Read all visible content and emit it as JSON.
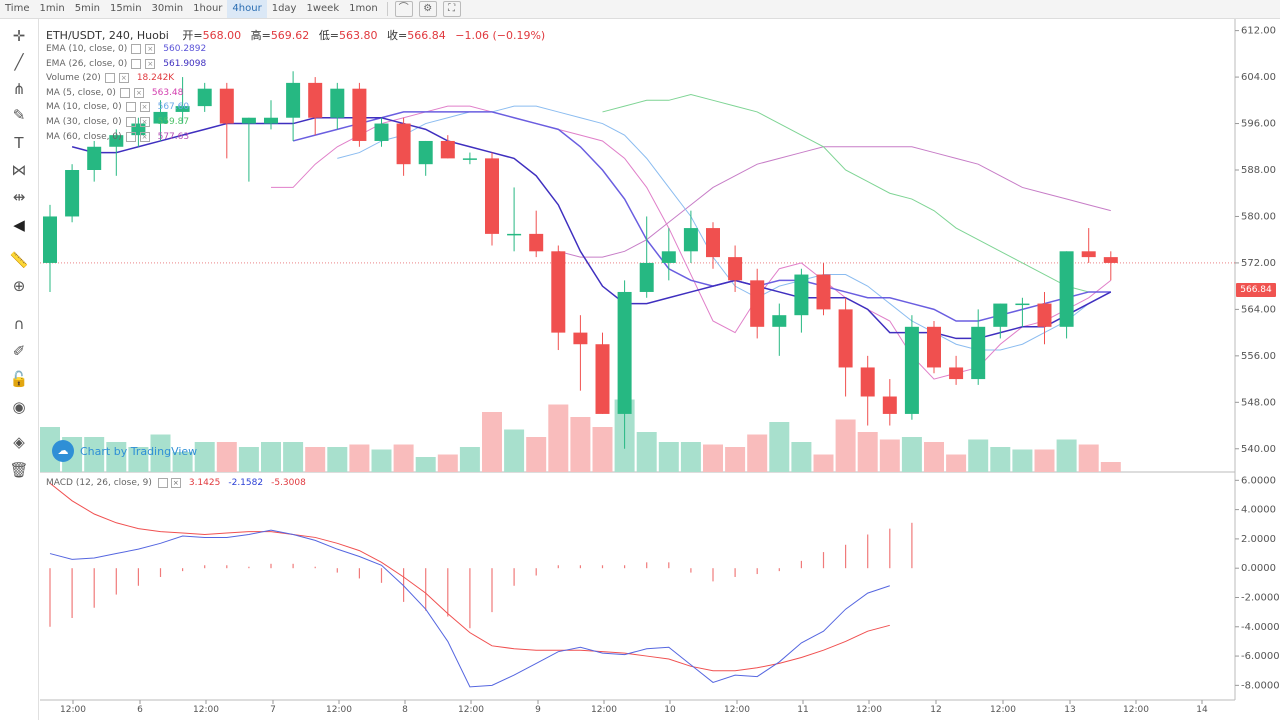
{
  "toolbar": {
    "timeframes": [
      {
        "label": "Time",
        "active": false
      },
      {
        "label": "1min",
        "active": false
      },
      {
        "label": "5min",
        "active": false
      },
      {
        "label": "15min",
        "active": false
      },
      {
        "label": "30min",
        "active": false
      },
      {
        "label": "1hour",
        "active": false
      },
      {
        "label": "4hour",
        "active": true
      },
      {
        "label": "1day",
        "active": false
      },
      {
        "label": "1week",
        "active": false
      },
      {
        "label": "1mon",
        "active": false
      }
    ],
    "icons": [
      "line-chart-icon",
      "settings-icon",
      "fullscreen-icon"
    ]
  },
  "sidebar": {
    "tools": [
      "crosshair-icon",
      "trend-line-icon",
      "pitchfork-icon",
      "brush-icon",
      "text-icon",
      "pattern-icon",
      "prediction-icon",
      "back-arrow-icon",
      "ruler-icon",
      "zoom-in-icon",
      "magnet-icon",
      "lock-drawing-icon",
      "unlock-icon",
      "eye-icon",
      "layers-icon",
      "trash-icon"
    ]
  },
  "header": {
    "symbol": "ETH/USDT, 240, Huobi",
    "open_label": "开=",
    "open": "568.00",
    "high_label": "高=",
    "high": "569.62",
    "low_label": "低=",
    "low": "563.80",
    "close_label": "收=",
    "close": "566.84",
    "change": "−1.06 (−0.19%)"
  },
  "indicators": [
    {
      "label": "EMA (10, close, 0)",
      "value": "560.2892",
      "color": "#5b54d8"
    },
    {
      "label": "EMA (26, close, 0)",
      "value": "561.9098",
      "color": "#3f2fbf"
    },
    {
      "label": "Volume (20)",
      "value": "18.242K",
      "color": "#e0393e"
    },
    {
      "label": "MA (5, close, 0)",
      "value": "563.48",
      "color": "#d33fb0"
    },
    {
      "label": "MA (10, close, 0)",
      "value": "567.60",
      "color": "#6aa7e8"
    },
    {
      "label": "MA (30, close, 0)",
      "value": "559.87",
      "color": "#4fc26a"
    },
    {
      "label": "MA (60, close, 0)",
      "value": "577.63",
      "color": "#b44fb4"
    }
  ],
  "macd": {
    "label": "MACD (12, 26, close, 9)",
    "v1": "3.1425",
    "v2": "-2.1582",
    "v3": "-5.3008"
  },
  "watermark": "Chart by TradingView",
  "last_price": "566.84",
  "price_axis": [
    "612.00",
    "604.00",
    "596.00",
    "588.00",
    "580.00",
    "572.00",
    "564.00",
    "556.00",
    "548.00",
    "540.00"
  ],
  "macd_axis": [
    "6.0000",
    "4.0000",
    "2.0000",
    "0.0000",
    "-2.0000",
    "-4.0000",
    "-6.0000",
    "-8.0000"
  ],
  "time_axis": [
    "12:00",
    "6",
    "12:00",
    "7",
    "12:00",
    "8",
    "12:00",
    "9",
    "12:00",
    "10",
    "12:00",
    "11",
    "12:00",
    "12",
    "12:00",
    "13",
    "12:00",
    "14"
  ],
  "chart_data": {
    "type": "candlestick",
    "symbol": "ETH/USDT",
    "candles": [
      {
        "o": 572,
        "h": 582,
        "l": 567,
        "c": 580
      },
      {
        "o": 580,
        "h": 589,
        "l": 579,
        "c": 588
      },
      {
        "o": 588,
        "h": 593,
        "l": 586,
        "c": 592
      },
      {
        "o": 592,
        "h": 595,
        "l": 587,
        "c": 594
      },
      {
        "o": 594,
        "h": 597,
        "l": 592,
        "c": 596
      },
      {
        "o": 596,
        "h": 600,
        "l": 593,
        "c": 598
      },
      {
        "o": 598,
        "h": 604,
        "l": 596,
        "c": 599
      },
      {
        "o": 599,
        "h": 603,
        "l": 598,
        "c": 602
      },
      {
        "o": 602,
        "h": 603,
        "l": 590,
        "c": 596
      },
      {
        "o": 596,
        "h": 597,
        "l": 586,
        "c": 597
      },
      {
        "o": 596,
        "h": 600,
        "l": 595,
        "c": 597
      },
      {
        "o": 597,
        "h": 605,
        "l": 593,
        "c": 603
      },
      {
        "o": 603,
        "h": 604,
        "l": 594,
        "c": 597
      },
      {
        "o": 597,
        "h": 603,
        "l": 595,
        "c": 602
      },
      {
        "o": 602,
        "h": 603,
        "l": 592,
        "c": 593
      },
      {
        "o": 593,
        "h": 597,
        "l": 592,
        "c": 596
      },
      {
        "o": 596,
        "h": 597,
        "l": 587,
        "c": 589
      },
      {
        "o": 589,
        "h": 593,
        "l": 587,
        "c": 593
      },
      {
        "o": 593,
        "h": 594,
        "l": 590,
        "c": 590
      },
      {
        "o": 590,
        "h": 591,
        "l": 589,
        "c": 590
      },
      {
        "o": 590,
        "h": 591,
        "l": 575,
        "c": 577
      },
      {
        "o": 577,
        "h": 585,
        "l": 574,
        "c": 577
      },
      {
        "o": 577,
        "h": 581,
        "l": 573,
        "c": 574
      },
      {
        "o": 574,
        "h": 575,
        "l": 557,
        "c": 560
      },
      {
        "o": 560,
        "h": 563,
        "l": 550,
        "c": 558
      },
      {
        "o": 558,
        "h": 560,
        "l": 546,
        "c": 546
      },
      {
        "o": 546,
        "h": 569,
        "l": 540,
        "c": 567
      },
      {
        "o": 567,
        "h": 580,
        "l": 566,
        "c": 572
      },
      {
        "o": 572,
        "h": 578,
        "l": 569,
        "c": 574
      },
      {
        "o": 574,
        "h": 581,
        "l": 572,
        "c": 578
      },
      {
        "o": 578,
        "h": 579,
        "l": 571,
        "c": 573
      },
      {
        "o": 573,
        "h": 575,
        "l": 567,
        "c": 569
      },
      {
        "o": 569,
        "h": 571,
        "l": 559,
        "c": 561
      },
      {
        "o": 561,
        "h": 565,
        "l": 556,
        "c": 563
      },
      {
        "o": 563,
        "h": 571,
        "l": 560,
        "c": 570
      },
      {
        "o": 570,
        "h": 572,
        "l": 563,
        "c": 564
      },
      {
        "o": 564,
        "h": 566,
        "l": 549,
        "c": 554
      },
      {
        "o": 554,
        "h": 556,
        "l": 544,
        "c": 549
      },
      {
        "o": 549,
        "h": 552,
        "l": 544,
        "c": 546
      },
      {
        "o": 546,
        "h": 563,
        "l": 545,
        "c": 561
      },
      {
        "o": 561,
        "h": 562,
        "l": 553,
        "c": 554
      },
      {
        "o": 554,
        "h": 556,
        "l": 551,
        "c": 552
      },
      {
        "o": 552,
        "h": 564,
        "l": 551,
        "c": 561
      },
      {
        "o": 561,
        "h": 565,
        "l": 559,
        "c": 565
      },
      {
        "o": 565,
        "h": 566,
        "l": 561,
        "c": 565
      },
      {
        "o": 565,
        "h": 567,
        "l": 558,
        "c": 561
      },
      {
        "o": 561,
        "h": 574,
        "l": 559,
        "c": 574
      },
      {
        "o": 574,
        "h": 578,
        "l": 572,
        "c": 573
      },
      {
        "o": 573,
        "h": 574,
        "l": 569,
        "c": 572
      }
    ],
    "volumes": [
      18,
      14,
      14,
      12,
      10,
      15,
      8,
      12,
      12,
      10,
      12,
      12,
      10,
      10,
      11,
      9,
      11,
      6,
      7,
      10,
      24,
      17,
      14,
      27,
      22,
      18,
      29,
      16,
      12,
      12,
      11,
      10,
      15,
      20,
      12,
      7,
      21,
      16,
      13,
      14,
      12,
      7,
      13,
      10,
      9,
      9,
      13,
      11,
      4
    ],
    "ema10": [
      592,
      591,
      591,
      592,
      593,
      594,
      595,
      596,
      596,
      596,
      596,
      597,
      597,
      597,
      597,
      596,
      595,
      593,
      592,
      591,
      590,
      587,
      582,
      574,
      568,
      565,
      565,
      566,
      567,
      568,
      569,
      568,
      567,
      566,
      566,
      566,
      564,
      560,
      560,
      560,
      559,
      559,
      560,
      561,
      561,
      563,
      565,
      567
    ],
    "ema26": [
      593,
      594,
      595,
      596,
      597,
      598,
      598,
      598,
      598,
      598,
      597,
      596,
      595,
      592,
      588,
      583,
      576,
      571,
      569,
      568,
      569,
      568,
      569,
      569,
      568,
      567,
      566,
      566,
      565,
      564,
      562,
      562,
      563,
      564,
      565,
      566,
      567,
      567
    ],
    "ma5": [
      585,
      585,
      589,
      592,
      594,
      596,
      597,
      598,
      599,
      599,
      598,
      597,
      596,
      595,
      594,
      593,
      590,
      585,
      578,
      570,
      562,
      560,
      566,
      571,
      572,
      569,
      566,
      564,
      562,
      556,
      552,
      553,
      554,
      558,
      561,
      562,
      564,
      566,
      569
    ],
    "ma10": [
      590,
      591,
      593,
      594,
      596,
      597,
      598,
      598,
      599,
      599,
      598,
      597,
      596,
      594,
      590,
      585,
      580,
      573,
      568,
      566,
      568,
      569,
      570,
      570,
      568,
      565,
      562,
      560,
      558,
      557,
      557,
      558,
      560,
      562,
      565,
      567
    ],
    "ma30": [
      598,
      599,
      600,
      600,
      601,
      600,
      599,
      598,
      596,
      594,
      592,
      588,
      586,
      584,
      583,
      581,
      578,
      576,
      574,
      572,
      570,
      568,
      567,
      567
    ],
    "ma60": [
      574,
      573,
      573,
      574,
      576,
      579,
      582,
      585,
      587,
      589,
      590,
      591,
      592,
      592,
      592,
      592,
      592,
      591,
      590,
      589,
      587,
      585,
      584,
      583,
      582,
      581
    ],
    "macd_line": [
      1.0,
      0.6,
      0.7,
      1.0,
      1.3,
      1.7,
      2.2,
      2.1,
      2.1,
      2.3,
      2.6,
      2.3,
      1.9,
      1.3,
      0.8,
      0.2,
      -1.2,
      -2.8,
      -5.0,
      -8.1,
      -8.0,
      -7.3,
      -6.5,
      -5.7,
      -5.4,
      -5.8,
      -5.9,
      -5.5,
      -5.4,
      -6.6,
      -7.8,
      -7.3,
      -7.4,
      -6.4,
      -5.1,
      -4.3,
      -2.8,
      -1.7,
      -1.2
    ],
    "signal_line": [
      5.8,
      4.6,
      3.7,
      3.1,
      2.7,
      2.5,
      2.4,
      2.3,
      2.4,
      2.5,
      2.5,
      2.3,
      2.1,
      1.7,
      1.2,
      0.4,
      -0.6,
      -1.7,
      -3.1,
      -4.4,
      -5.3,
      -5.5,
      -5.6,
      -5.6,
      -5.6,
      -5.7,
      -5.8,
      -6.0,
      -6.2,
      -6.7,
      -7.0,
      -7.0,
      -6.8,
      -6.5,
      -6.1,
      -5.6,
      -5.0,
      -4.3,
      -3.9
    ],
    "histogram": [
      -4.0,
      -3.4,
      -2.7,
      -1.8,
      -1.2,
      -0.6,
      -0.2,
      0.2,
      0.2,
      0.1,
      0.3,
      0.3,
      0.1,
      -0.3,
      -0.7,
      -1.0,
      -2.3,
      -2.9,
      -3.3,
      -4.1,
      -3.0,
      -1.2,
      -0.5,
      0.2,
      0.2,
      0.2,
      0.2,
      0.4,
      0.4,
      -0.3,
      -0.9,
      -0.6,
      -0.4,
      -0.2,
      0.5,
      1.1,
      1.6,
      2.3,
      2.7,
      3.1
    ],
    "price_range": [
      536,
      614
    ],
    "macd_range": [
      -9,
      6.5
    ]
  }
}
